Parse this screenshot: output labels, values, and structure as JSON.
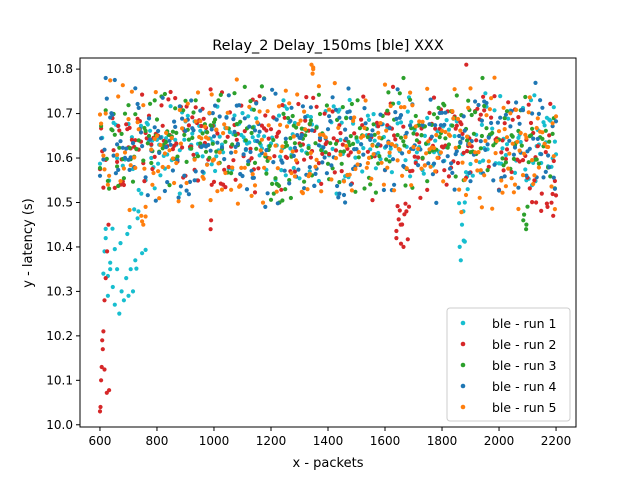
{
  "chart_data": {
    "type": "scatter",
    "title": "Relay_2 Delay_150ms [ble] XXX",
    "xlabel": "x - packets",
    "ylabel": "y - latency (s)",
    "xlim": [
      530,
      2270
    ],
    "ylim": [
      9.995,
      10.825
    ],
    "xticks": [
      600,
      800,
      1000,
      1200,
      1400,
      1600,
      1800,
      2000,
      2200
    ],
    "yticks": [
      "10.0",
      "10.1",
      "10.2",
      "10.3",
      "10.4",
      "10.5",
      "10.6",
      "10.7",
      "10.8"
    ],
    "grid": false,
    "legend_position": "lower-right",
    "x_range": [
      600,
      2200
    ],
    "series": [
      {
        "name": "ble - run 1",
        "color": "#17becf",
        "typical_min": 10.52,
        "typical_max": 10.76,
        "excursions": [
          {
            "x": [
              600,
              700
            ],
            "y": [
              10.25,
              10.45
            ]
          },
          {
            "x": [
              700,
              760
            ],
            "y": [
              10.3,
              10.55
            ]
          },
          {
            "x": [
              1840,
              1880
            ],
            "y": [
              10.37,
              10.55
            ]
          }
        ],
        "points": [
          [
            612,
            10.34
          ],
          [
            620,
            10.42
          ],
          [
            628,
            10.29
          ],
          [
            636,
            10.35
          ],
          [
            645,
            10.31
          ],
          [
            652,
            10.27
          ],
          [
            660,
            10.35
          ],
          [
            668,
            10.25
          ],
          [
            676,
            10.3
          ],
          [
            684,
            10.28
          ],
          [
            692,
            10.33
          ],
          [
            700,
            10.29
          ],
          [
            708,
            10.35
          ],
          [
            716,
            10.3
          ],
          [
            724,
            10.37
          ],
          [
            735,
            10.48
          ],
          [
            745,
            10.52
          ],
          [
            760,
            10.55
          ],
          [
            780,
            10.6
          ],
          [
            1862,
            10.4
          ],
          [
            1866,
            10.37
          ],
          [
            1870,
            10.45
          ],
          [
            1875,
            10.48
          ],
          [
            1880,
            10.5
          ],
          [
            1890,
            10.53
          ],
          [
            880,
            10.52
          ],
          [
            940,
            10.55
          ],
          [
            1430,
            10.52
          ],
          [
            1455,
            10.55
          ]
        ]
      },
      {
        "name": "ble - run 2",
        "color": "#d62728",
        "typical_min": 10.5,
        "typical_max": 10.78,
        "excursions": [
          {
            "x": [
              600,
              640
            ],
            "y": [
              10.03,
              10.2
            ]
          },
          {
            "x": [
              980,
              990
            ],
            "y": [
              10.44,
              10.46
            ]
          },
          {
            "x": [
              1640,
              1690
            ],
            "y": [
              10.4,
              10.5
            ]
          },
          {
            "x": [
              2100,
              2200
            ],
            "y": [
              10.47,
              10.55
            ]
          }
        ],
        "points": [
          [
            600,
            10.03
          ],
          [
            602,
            10.04
          ],
          [
            604,
            10.1
          ],
          [
            606,
            10.13
          ],
          [
            608,
            10.19
          ],
          [
            610,
            10.17
          ],
          [
            612,
            10.21
          ],
          [
            616,
            10.28
          ],
          [
            620,
            10.33
          ],
          [
            625,
            10.39
          ],
          [
            630,
            10.45
          ],
          [
            988,
            10.44
          ],
          [
            990,
            10.46
          ],
          [
            1640,
            10.42
          ],
          [
            1655,
            10.45
          ],
          [
            1665,
            10.4
          ],
          [
            1675,
            10.48
          ],
          [
            1885,
            10.81
          ],
          [
            2130,
            10.5
          ],
          [
            2150,
            10.52
          ],
          [
            2170,
            10.49
          ],
          [
            2190,
            10.47
          ]
        ]
      },
      {
        "name": "ble - run 3",
        "color": "#2ca02c",
        "typical_min": 10.52,
        "typical_max": 10.77,
        "excursions": [
          {
            "x": [
              1200,
              1240
            ],
            "y": [
              10.5,
              10.55
            ]
          },
          {
            "x": [
              2080,
              2100
            ],
            "y": [
              10.44,
              10.5
            ]
          }
        ],
        "points": [
          [
            1210,
            10.52
          ],
          [
            1230,
            10.5
          ],
          [
            1250,
            10.53
          ],
          [
            1270,
            10.51
          ],
          [
            2085,
            10.46
          ],
          [
            2095,
            10.44
          ],
          [
            1665,
            10.78
          ],
          [
            1942,
            10.78
          ]
        ]
      },
      {
        "name": "ble - run 4",
        "color": "#1f77b4",
        "typical_min": 10.48,
        "typical_max": 10.78,
        "excursions": [
          {
            "x": [
              1430,
              1460
            ],
            "y": [
              10.5,
              10.55
            ]
          }
        ],
        "points": [
          [
            620,
            10.78
          ],
          [
            1180,
            10.49
          ],
          [
            1440,
            10.52
          ],
          [
            1460,
            10.5
          ],
          [
            1480,
            10.54
          ]
        ]
      },
      {
        "name": "ble - run 5",
        "color": "#ff7f0e",
        "typical_min": 10.45,
        "typical_max": 10.8,
        "excursions": [
          {
            "x": [
              740,
              760
            ],
            "y": [
              10.45,
              10.5
            ]
          },
          {
            "x": [
              1340,
              1350
            ],
            "y": [
              10.78,
              10.81
            ]
          }
        ],
        "points": [
          [
            745,
            10.47
          ],
          [
            752,
            10.45
          ],
          [
            760,
            10.49
          ],
          [
            1342,
            10.81
          ],
          [
            1346,
            10.79
          ],
          [
            1348,
            10.8
          ]
        ]
      }
    ]
  }
}
